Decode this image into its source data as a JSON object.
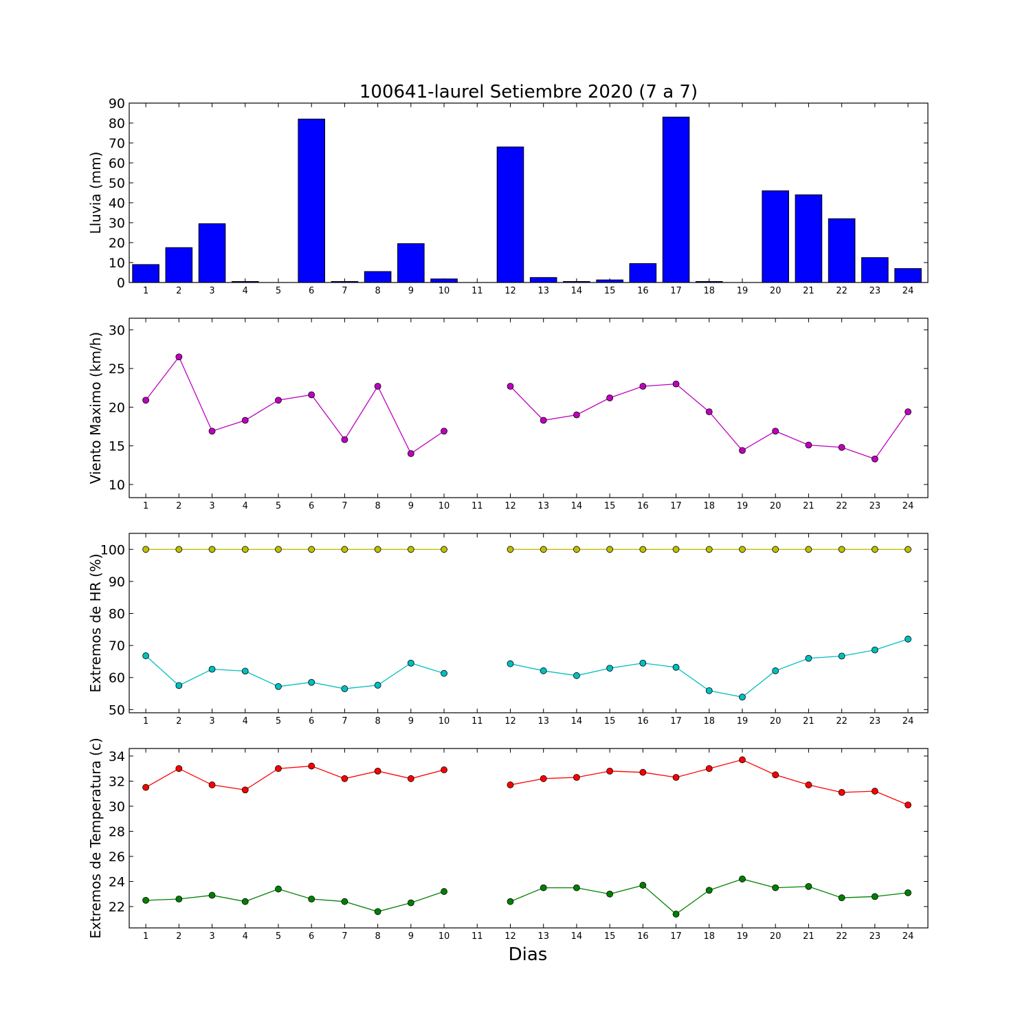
{
  "title": "100641-laurel Setiembre 2020  (7 a 7)",
  "xlabel": "Dias",
  "chart_data": [
    {
      "type": "bar",
      "ylabel": "Lluvia (mm)",
      "categories": [
        "1",
        "2",
        "3",
        "4",
        "5",
        "6",
        "7",
        "8",
        "9",
        "10",
        "11",
        "12",
        "13",
        "14",
        "15",
        "16",
        "17",
        "18",
        "19",
        "20",
        "21",
        "22",
        "23",
        "24"
      ],
      "values": [
        9,
        17.5,
        29.5,
        0.5,
        0,
        82,
        0.5,
        5.5,
        19.5,
        1.8,
        0,
        68,
        2.5,
        0.5,
        1.3,
        9.5,
        83,
        0.5,
        0,
        46,
        44,
        32,
        12.5,
        7
      ],
      "ylim": [
        0,
        90
      ],
      "yticks": [
        0,
        10,
        20,
        30,
        40,
        50,
        60,
        70,
        80,
        90
      ],
      "series": [
        {
          "values": [
            9,
            17.5,
            29.5,
            0.5,
            0,
            82,
            0.5,
            5.5,
            19.5,
            1.8,
            0,
            68,
            2.5,
            0.5,
            1.3,
            9.5,
            83,
            0.5,
            0,
            46,
            44,
            32,
            12.5,
            7
          ],
          "color": "#0000ff"
        }
      ]
    },
    {
      "type": "line",
      "ylabel": "Viento Maximo (km/h)",
      "categories": [
        "1",
        "2",
        "3",
        "4",
        "5",
        "6",
        "7",
        "8",
        "9",
        "10",
        "11",
        "12",
        "13",
        "14",
        "15",
        "16",
        "17",
        "18",
        "19",
        "20",
        "21",
        "22",
        "23",
        "24"
      ],
      "ylim": [
        8.3,
        31.5
      ],
      "yticks": [
        10,
        15,
        20,
        25,
        30
      ],
      "series": [
        {
          "color": "#bf00bf",
          "values": [
            20.9,
            26.5,
            16.9,
            18.3,
            20.9,
            21.6,
            15.8,
            22.7,
            14,
            16.9,
            null,
            22.7,
            18.3,
            19,
            21.2,
            22.7,
            23,
            19.4,
            14.4,
            16.9,
            15.1,
            14.8,
            13.3,
            19.4
          ]
        }
      ]
    },
    {
      "type": "line",
      "ylabel": "Extremos de HR (%)",
      "categories": [
        "1",
        "2",
        "3",
        "4",
        "5",
        "6",
        "7",
        "8",
        "9",
        "10",
        "11",
        "12",
        "13",
        "14",
        "15",
        "16",
        "17",
        "18",
        "19",
        "20",
        "21",
        "22",
        "23",
        "24"
      ],
      "ylim": [
        49,
        105
      ],
      "yticks": [
        50,
        60,
        70,
        80,
        90,
        100
      ],
      "series": [
        {
          "color": "#bfbf00",
          "values": [
            100,
            100,
            100,
            100,
            100,
            100,
            100,
            100,
            100,
            100,
            null,
            100,
            100,
            100,
            100,
            100,
            100,
            100,
            100,
            100,
            100,
            100,
            100,
            100
          ]
        },
        {
          "color": "#00bfbf",
          "values": [
            66.8,
            57.5,
            62.6,
            62,
            57.2,
            58.5,
            56.5,
            57.6,
            64.5,
            61.3,
            null,
            64.3,
            62.1,
            60.6,
            62.9,
            64.5,
            63.2,
            55.9,
            53.9,
            62.1,
            66,
            66.7,
            68.6,
            72
          ]
        }
      ]
    },
    {
      "type": "line",
      "ylabel": "Extremos de Temperatura (c)",
      "categories": [
        "1",
        "2",
        "3",
        "4",
        "5",
        "6",
        "7",
        "8",
        "9",
        "10",
        "11",
        "12",
        "13",
        "14",
        "15",
        "16",
        "17",
        "18",
        "19",
        "20",
        "21",
        "22",
        "23",
        "24"
      ],
      "ylim": [
        20.3,
        34.6
      ],
      "yticks": [
        22,
        24,
        26,
        28,
        30,
        32,
        34
      ],
      "series": [
        {
          "color": "#ff0000",
          "values": [
            31.5,
            33,
            31.7,
            31.3,
            33,
            33.2,
            32.2,
            32.8,
            32.2,
            32.9,
            null,
            31.7,
            32.2,
            32.3,
            32.8,
            32.7,
            32.3,
            33,
            33.7,
            32.5,
            31.7,
            31.1,
            31.2,
            30.1
          ]
        },
        {
          "color": "#008000",
          "values": [
            22.5,
            22.6,
            22.9,
            22.4,
            23.4,
            22.6,
            22.4,
            21.6,
            22.3,
            23.2,
            null,
            22.4,
            23.5,
            23.5,
            23,
            23.7,
            21.4,
            23.3,
            24.2,
            23.5,
            23.6,
            22.7,
            22.8,
            23.1
          ]
        }
      ]
    }
  ]
}
